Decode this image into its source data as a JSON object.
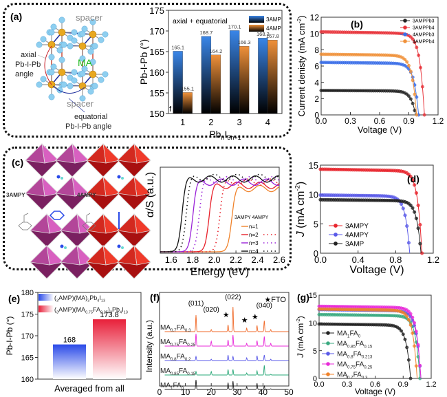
{
  "panels": {
    "a": {
      "label": "(a)",
      "structure": {
        "spacer_top": "spacer",
        "spacer_bottom": "spacer",
        "ma": "MA",
        "axial": [
          "axial",
          "Pb-I-Pb",
          "angle"
        ],
        "equatorial": [
          "equatorial",
          "Pb-I-Pb angle"
        ]
      }
    },
    "c": {
      "label": "(c)",
      "left_name": "3AMPY",
      "right_name": "4AMPY"
    }
  },
  "chart_data": [
    {
      "id": "a-bar",
      "type": "bar",
      "title": "axial + equatorial",
      "xlabel": "PbnI3n+1",
      "ylabel": "Pb-I-Pb (°)",
      "categories": [
        "1",
        "2",
        "3",
        "4"
      ],
      "ylim": [
        150,
        175
      ],
      "yticks": [
        150,
        155,
        160,
        165,
        170,
        175
      ],
      "series": [
        {
          "name": "3AMP",
          "color": "#3a86e8",
          "values": [
            165.1,
            168.7,
            170.1,
            168.3
          ],
          "labels": [
            "165.1",
            "168.7",
            "170.1",
            "168.3"
          ]
        },
        {
          "name": "4AMP",
          "color": "#f0913a",
          "values": [
            155.1,
            164.2,
            166.3,
            167.8
          ],
          "labels": [
            "155.1",
            "164.2",
            "166.3",
            "167.8"
          ]
        }
      ],
      "corner_text": "f"
    },
    {
      "id": "b-jv",
      "type": "line",
      "label": "(b)",
      "xlabel": "Voltage (V)",
      "ylabel": "Current denisty (mA cm-2)",
      "xlim": [
        0,
        1.2
      ],
      "ylim": [
        0,
        12
      ],
      "xticks": [
        "0.0",
        "0.3",
        "0.6",
        "0.9",
        "1.2"
      ],
      "yticks": [
        "0",
        "2",
        "4",
        "6",
        "8",
        "10",
        "12"
      ],
      "legend": "top-right",
      "series": [
        {
          "name": "3AMPPb3",
          "color": "#222222",
          "jsc": 3.0,
          "voc": 0.97,
          "knee": 0.72
        },
        {
          "name": "3AMPPb4",
          "color": "#e8333a",
          "jsc": 10.2,
          "voc": 1.06,
          "knee": 0.68
        },
        {
          "name": "4AMPPb3",
          "color": "#3a6ee8",
          "jsc": 6.45,
          "voc": 1.0,
          "knee": 0.66
        },
        {
          "name": "4AMPPb4",
          "color": "#f0913a",
          "jsc": 7.45,
          "voc": 0.98,
          "knee": 0.7
        }
      ]
    },
    {
      "id": "c-abs",
      "type": "line",
      "xlabel": "Energy (eV)",
      "ylabel": "α/S (a.u.)",
      "xlim": [
        1.5,
        2.6
      ],
      "xticks": [
        "1.6",
        "1.8",
        "2.0",
        "2.2",
        "2.4",
        "2.6"
      ],
      "legend_header": "3AMPY 4AMPY",
      "legend": "bottom-right",
      "series": [
        {
          "name": "n=1",
          "color": "#f0822a",
          "onset_3ampy": 2.16
        },
        {
          "name": "n=2",
          "color": "#e8202a",
          "onset_3ampy": 1.95,
          "onset_4ampy": 2.05
        },
        {
          "name": "n=3",
          "color": "#9a22d8",
          "onset_3ampy": 1.8,
          "onset_4ampy": 1.86
        },
        {
          "name": "n=4",
          "color": "#111111",
          "onset_3ampy": 1.7,
          "onset_4ampy": 1.74
        }
      ]
    },
    {
      "id": "d-jv",
      "type": "line",
      "label": "(d)",
      "xlabel": "Voltage (V)",
      "ylabel": "J (mA cm-2)",
      "xlim": [
        0,
        1.2
      ],
      "ylim": [
        0,
        15
      ],
      "xticks": [
        "0.0",
        "0.4",
        "0.8",
        "1.2"
      ],
      "yticks": [
        "0",
        "5",
        "10",
        "15"
      ],
      "legend": "bottom-left",
      "series": [
        {
          "name": "3AMPY",
          "color": "#e8262e",
          "jsc": 14.3,
          "voc": 1.08,
          "knee": 0.6
        },
        {
          "name": "4AMPY",
          "color": "#5a5ae8",
          "jsc": 9.9,
          "voc": 0.95,
          "knee": 0.55
        },
        {
          "name": "3AMP",
          "color": "#222222",
          "jsc": 9.1,
          "voc": 1.07,
          "knee": 0.8
        }
      ]
    },
    {
      "id": "e-bar",
      "type": "bar",
      "label": "(e)",
      "xlabel": "Averaged from all",
      "ylabel": "Pb-I-Pb (°)",
      "ylim": [
        160,
        180
      ],
      "yticks": [
        160,
        165,
        170,
        175,
        180
      ],
      "series": [
        {
          "name": "(3AMP)(MA)3Pb4I13",
          "color": "#2a4ae8",
          "value": 168,
          "label": "168"
        },
        {
          "name": "(3AMP)(MA0.75FA0.25)3Pb4I13",
          "color": "#e8203a",
          "value": 173.8,
          "label": "173.8"
        }
      ]
    },
    {
      "id": "f-xrd",
      "type": "line",
      "label": "(f)",
      "ylabel": "Intensity (a.u.)",
      "xlim": [
        0,
        50
      ],
      "xticks": [
        "0",
        "10",
        "20",
        "30",
        "40",
        "50"
      ],
      "fto_label": "★FTO",
      "peaks": [
        {
          "label": "(011)",
          "x": 14.1
        },
        {
          "label": "(020)",
          "x": 20.0
        },
        {
          "label": "(022)",
          "x": 28.4
        },
        {
          "label": "(040)",
          "x": 40.5
        }
      ],
      "fto_peaks": [
        26.5,
        33.7,
        37.7
      ],
      "series": [
        {
          "name": "MA0.7FA0.3",
          "color": "#f06a2a"
        },
        {
          "name": "MA0.75FA0.25",
          "color": "#e82ad8"
        },
        {
          "name": "MA0.8FA0.2",
          "color": "#5a5ae8"
        },
        {
          "name": "MA0.85FA0.15",
          "color": "#2aa878"
        },
        {
          "name": "MA1FA0",
          "color": "#222222"
        }
      ]
    },
    {
      "id": "g-jv",
      "type": "line",
      "label": "(g)",
      "xlabel": "Voltage (V)",
      "ylabel": "J (mA cm-2)",
      "xlim": [
        0,
        1.2
      ],
      "ylim": [
        0,
        15
      ],
      "xticks": [
        "0.0",
        "0.3",
        "0.6",
        "0.9",
        "1.2"
      ],
      "yticks": [
        "0",
        "5",
        "10",
        "15"
      ],
      "legend": "bottom-left",
      "series": [
        {
          "name": "MA1FA0",
          "color": "#222222",
          "jsc": 9.8,
          "voc": 0.98,
          "knee": 0.72
        },
        {
          "name": "MA0.85FA0.15",
          "color": "#3aaa80",
          "jsc": 11.5,
          "voc": 1.08,
          "knee": 0.85
        },
        {
          "name": "MA0.8FA0.213",
          "color": "#5a5ae8",
          "jsc": 12.4,
          "voc": 1.09,
          "knee": 0.88
        },
        {
          "name": "MA0.75FA0.25",
          "color": "#e82ad8",
          "jsc": 13.0,
          "voc": 1.09,
          "knee": 0.92
        },
        {
          "name": "MA0.7FA0.3",
          "color": "#f0822a",
          "jsc": 12.5,
          "voc": 1.05,
          "knee": 0.88
        }
      ]
    }
  ]
}
